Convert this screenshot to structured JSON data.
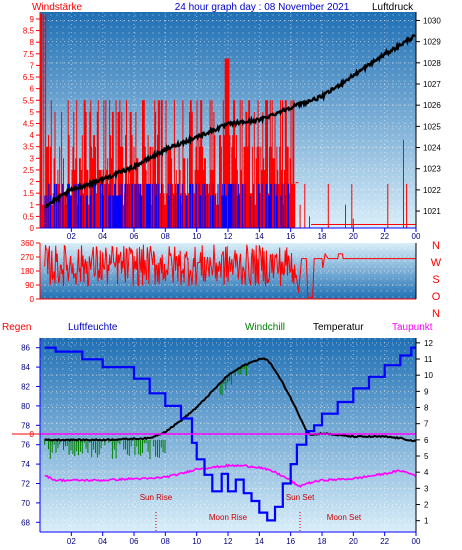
{
  "header": {
    "left_label": "Windstärke",
    "title": "24 hour graph day : 08 November 2021",
    "right_label": "Luftdruck"
  },
  "colors": {
    "sky_top": "#d9eef9",
    "sky_bottom": "#1f6fb4",
    "wind": "#ff0000",
    "gust": "#0000ff",
    "pressure": "#000000",
    "red_axis": "#ff0000",
    "blue_axis": "#0000ff",
    "windchill": "#008000",
    "temperature": "#000000",
    "dewpoint": "#ff00ff",
    "humidity": "#0000ff",
    "rain": "#ff0000",
    "event": "#cc0000"
  },
  "legend": {
    "rain": "Regen",
    "humidity": "Luftfeuchte",
    "windchill": "Windchill",
    "temperature": "Temperatur",
    "dewpoint": "Taupunkt"
  },
  "events": {
    "sunrise": "Sun Rise",
    "moonrise": "Moon Rise",
    "sunset": "Sun Set",
    "moonset": "Moon Set"
  },
  "chart_data": [
    {
      "id": "wind-pressure",
      "type": "line",
      "title": "24 hour graph day : 08 November 2021",
      "x_ticks": [
        "02",
        "04",
        "06",
        "08",
        "10",
        "12",
        "14",
        "16",
        "18",
        "20",
        "22",
        "00"
      ],
      "left_axis": {
        "label": "Windstärke",
        "ticks": [
          "0",
          "0.5",
          "1",
          "1.5",
          "2",
          "2.5",
          "3",
          "3.5",
          "4",
          "4.5",
          "5",
          "5.5",
          "6",
          "6.5",
          "7",
          "7.5",
          "8",
          "8.5",
          "9"
        ],
        "range": [
          0,
          9.3
        ]
      },
      "right_axis": {
        "label": "Luftdruck",
        "ticks": [
          "1021",
          "1022",
          "1023",
          "1024",
          "1025",
          "1026",
          "1027",
          "1028",
          "1029",
          "1030"
        ],
        "range": [
          1020.2,
          1030.4
        ]
      },
      "pressure": {
        "hours": [
          0.3,
          2,
          4,
          6,
          8,
          10,
          12,
          14,
          16,
          18,
          20,
          22,
          24
        ],
        "values": [
          1021.2,
          1022.0,
          1022.5,
          1023.1,
          1023.9,
          1024.5,
          1025.1,
          1025.3,
          1025.9,
          1026.4,
          1027.4,
          1028.4,
          1029.3
        ]
      },
      "wind_activity_end_hour": 16.3
    },
    {
      "id": "wind-direction",
      "type": "line",
      "left_axis": {
        "ticks": [
          "0",
          "90",
          "180",
          "270",
          "360"
        ],
        "range": [
          0,
          360
        ]
      },
      "compass": [
        "N",
        "W",
        "S",
        "O",
        "N"
      ],
      "direction_after_16h": 260
    },
    {
      "id": "temperature-humidity",
      "type": "line",
      "x_ticks": [
        "02",
        "04",
        "06",
        "08",
        "10",
        "12",
        "14",
        "16",
        "18",
        "20",
        "22",
        "00"
      ],
      "left_axis": {
        "label": "Luftfeuchte",
        "ticks": [
          "68",
          "70",
          "72",
          "74",
          "76",
          "78",
          "80",
          "82",
          "84",
          "86"
        ],
        "range": [
          67,
          87
        ]
      },
      "right_axis": {
        "label": "Temperatur",
        "ticks": [
          "1",
          "2",
          "3",
          "4",
          "5",
          "6",
          "7",
          "8",
          "9",
          "10",
          "11",
          "12"
        ],
        "range": [
          0.3,
          12.3
        ]
      },
      "rain_axis": {
        "label": "Regen",
        "ticks": [
          "0"
        ]
      },
      "series": [
        {
          "name": "Luftfeuchte",
          "hours": [
            0.3,
            1.0,
            2.7,
            4.0,
            6.0,
            7.0,
            8.0,
            9.0,
            9.7,
            10.0,
            10.5,
            11.0,
            11.6,
            12.0,
            12.5,
            13.0,
            13.5,
            14.0,
            14.5,
            15.0,
            15.5,
            16.0,
            16.4,
            17.0,
            17.5,
            18.0,
            19.0,
            20.0,
            21.0,
            22.0,
            23.0,
            23.7,
            24.0
          ],
          "values": [
            86.0,
            85.6,
            84.8,
            84.0,
            82.8,
            81.3,
            80.0,
            78.7,
            76.2,
            74.5,
            72.9,
            71.2,
            73.0,
            71.2,
            72.4,
            71.0,
            70.2,
            69.0,
            68.2,
            69.6,
            72.0,
            74.0,
            76.0,
            77.4,
            78.0,
            79.2,
            80.4,
            81.8,
            83.0,
            84.2,
            85.2,
            86.0,
            86.0
          ]
        },
        {
          "name": "Temperatur",
          "hours": [
            0.3,
            4,
            7,
            8,
            9,
            10,
            11,
            12,
            13,
            14,
            14.5,
            15,
            15.5,
            16,
            16.5,
            17,
            17.3,
            18,
            20,
            22,
            23,
            24
          ],
          "values": [
            6.0,
            6.0,
            6.1,
            6.5,
            7.2,
            8.0,
            9.0,
            10.0,
            10.6,
            11.0,
            11.0,
            10.3,
            9.5,
            8.6,
            7.6,
            6.6,
            6.3,
            6.4,
            6.2,
            6.2,
            6.1,
            5.9
          ]
        },
        {
          "name": "Windchill",
          "hours": [
            0.3,
            1,
            2,
            3,
            4,
            5,
            6,
            7,
            8,
            11,
            12,
            13,
            14,
            24
          ],
          "values": [
            4.8,
            5.5,
            5.2,
            5.9,
            5.2,
            5.6,
            5.8,
            5.3,
            6.2,
            10.0,
            10.3,
            10.5,
            11.0,
            5.9
          ]
        },
        {
          "name": "Taupunkt",
          "hours": [
            0.3,
            1,
            2,
            3,
            4,
            5,
            6,
            7,
            8,
            9,
            10,
            11,
            12,
            13,
            14,
            15,
            16,
            16.5,
            17,
            18,
            20,
            22,
            23,
            24
          ],
          "values": [
            3.8,
            3.5,
            3.5,
            3.5,
            3.5,
            3.55,
            3.6,
            3.6,
            3.7,
            3.9,
            4.2,
            4.3,
            4.4,
            4.4,
            4.3,
            4.0,
            3.5,
            3.1,
            3.3,
            3.5,
            3.6,
            3.9,
            4.1,
            3.8
          ]
        }
      ],
      "rain_value": 0
    }
  ]
}
